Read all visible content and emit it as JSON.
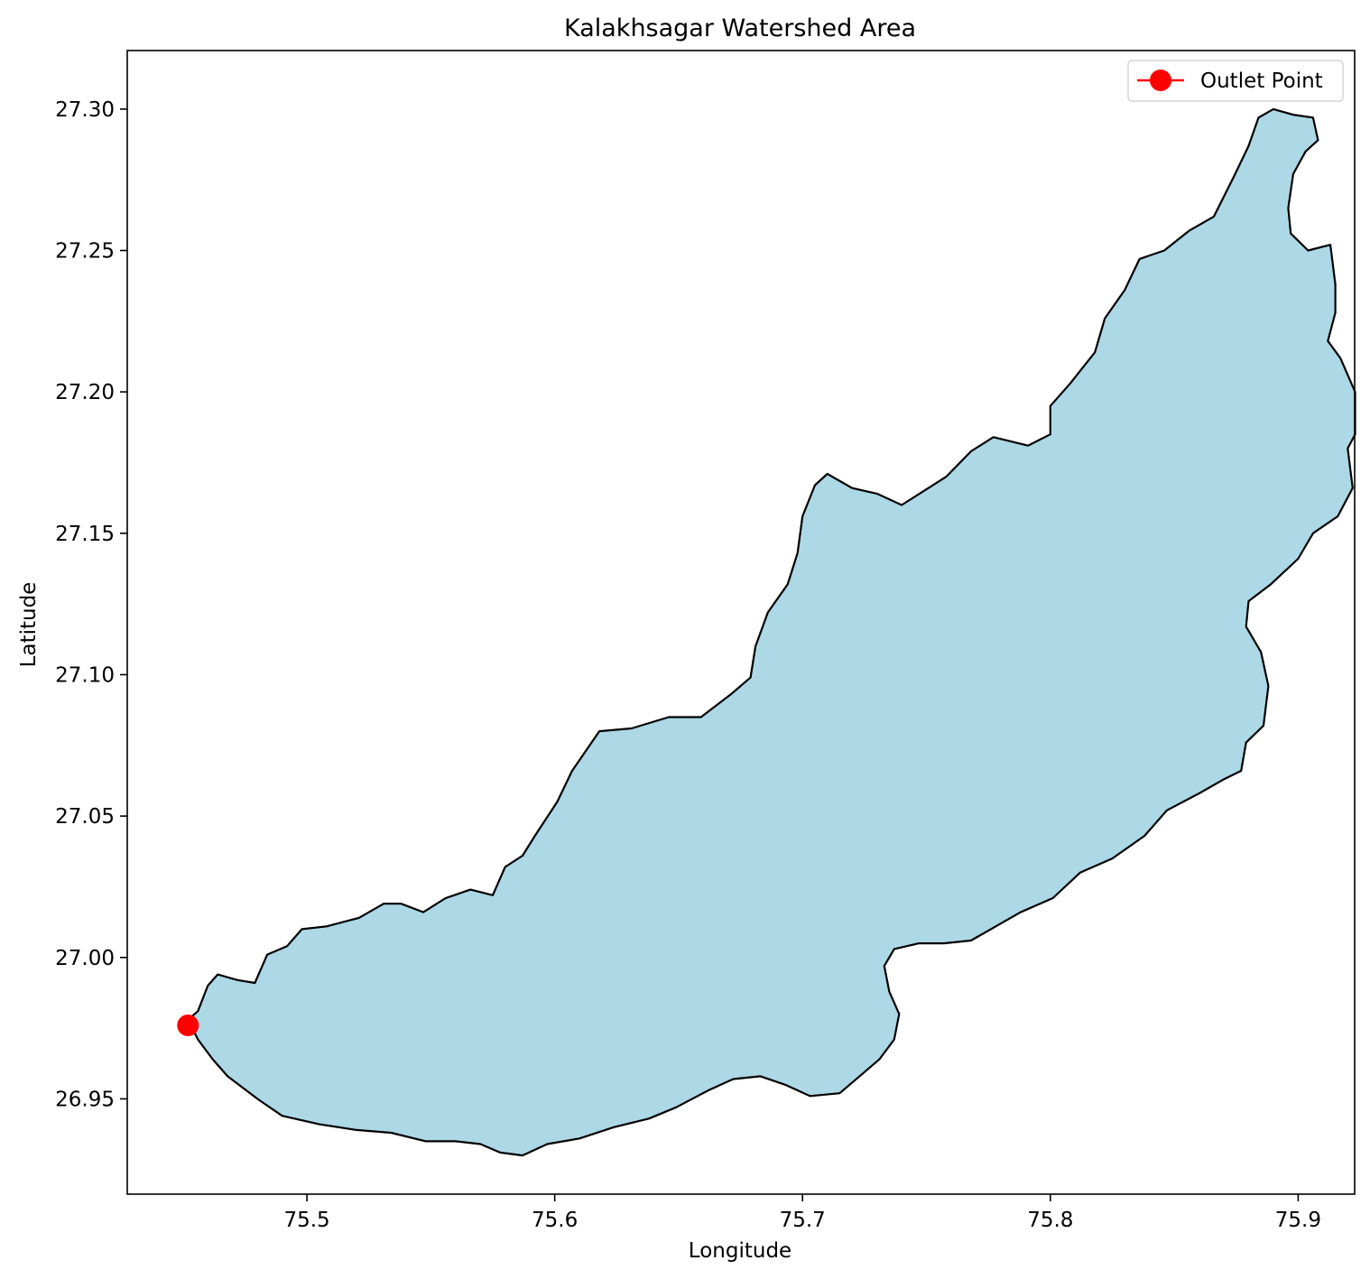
{
  "chart_data": {
    "type": "map",
    "title": "Kalakhsagar Watershed Area",
    "xlabel": "Longitude",
    "ylabel": "Latitude",
    "xlim": [
      75.4275,
      75.9228
    ],
    "ylim": [
      26.9163,
      27.3207
    ],
    "xticks": [
      75.5,
      75.6,
      75.7,
      75.8,
      75.9
    ],
    "xtick_labels": [
      "75.5",
      "75.6",
      "75.7",
      "75.8",
      "75.9"
    ],
    "yticks": [
      26.95,
      27.0,
      27.05,
      27.1,
      27.15,
      27.2,
      27.25,
      27.3
    ],
    "ytick_labels": [
      "26.95",
      "27.00",
      "27.05",
      "27.10",
      "27.15",
      "27.20",
      "27.25",
      "27.30"
    ],
    "grid": false,
    "legend": {
      "placement": "top-right",
      "entries": [
        "Outlet Point"
      ]
    },
    "colors": {
      "watershed_fill": "#add8e6",
      "watershed_edge": "#000000",
      "outlet": "#ff0000"
    },
    "watershed_boundary": [
      [
        75.452,
        26.978
      ],
      [
        75.456,
        26.981
      ],
      [
        75.46,
        26.99
      ],
      [
        75.464,
        26.994
      ],
      [
        75.472,
        26.992
      ],
      [
        75.479,
        26.991
      ],
      [
        75.484,
        27.001
      ],
      [
        75.492,
        27.004
      ],
      [
        75.498,
        27.01
      ],
      [
        75.508,
        27.011
      ],
      [
        75.521,
        27.014
      ],
      [
        75.531,
        27.019
      ],
      [
        75.538,
        27.019
      ],
      [
        75.547,
        27.016
      ],
      [
        75.556,
        27.021
      ],
      [
        75.566,
        27.024
      ],
      [
        75.575,
        27.022
      ],
      [
        75.58,
        27.032
      ],
      [
        75.587,
        27.036
      ],
      [
        75.592,
        27.043
      ],
      [
        75.601,
        27.055
      ],
      [
        75.607,
        27.066
      ],
      [
        75.618,
        27.08
      ],
      [
        75.631,
        27.081
      ],
      [
        75.646,
        27.085
      ],
      [
        75.659,
        27.085
      ],
      [
        75.671,
        27.093
      ],
      [
        75.679,
        27.099
      ],
      [
        75.681,
        27.11
      ],
      [
        75.686,
        27.122
      ],
      [
        75.694,
        27.132
      ],
      [
        75.698,
        27.143
      ],
      [
        75.7,
        27.156
      ],
      [
        75.705,
        27.167
      ],
      [
        75.71,
        27.171
      ],
      [
        75.72,
        27.166
      ],
      [
        75.73,
        27.164
      ],
      [
        75.74,
        27.16
      ],
      [
        75.749,
        27.165
      ],
      [
        75.758,
        27.17
      ],
      [
        75.768,
        27.179
      ],
      [
        75.777,
        27.184
      ],
      [
        75.791,
        27.181
      ],
      [
        75.8,
        27.185
      ],
      [
        75.8,
        27.195
      ],
      [
        75.808,
        27.203
      ],
      [
        75.818,
        27.214
      ],
      [
        75.822,
        27.226
      ],
      [
        75.83,
        27.236
      ],
      [
        75.836,
        27.247
      ],
      [
        75.846,
        27.25
      ],
      [
        75.856,
        27.257
      ],
      [
        75.866,
        27.262
      ],
      [
        75.874,
        27.276
      ],
      [
        75.88,
        27.287
      ],
      [
        75.884,
        27.297
      ],
      [
        75.89,
        27.3
      ],
      [
        75.898,
        27.298
      ],
      [
        75.906,
        27.297
      ],
      [
        75.908,
        27.289
      ],
      [
        75.903,
        27.285
      ],
      [
        75.898,
        27.277
      ],
      [
        75.896,
        27.265
      ],
      [
        75.897,
        27.256
      ],
      [
        75.904,
        27.25
      ],
      [
        75.913,
        27.252
      ],
      [
        75.915,
        27.238
      ],
      [
        75.915,
        27.228
      ],
      [
        75.912,
        27.218
      ],
      [
        75.917,
        27.212
      ],
      [
        75.923,
        27.2
      ],
      [
        75.923,
        27.185
      ],
      [
        75.92,
        27.18
      ],
      [
        75.922,
        27.166
      ],
      [
        75.916,
        27.156
      ],
      [
        75.906,
        27.15
      ],
      [
        75.9,
        27.141
      ],
      [
        75.889,
        27.132
      ],
      [
        75.88,
        27.126
      ],
      [
        75.879,
        27.117
      ],
      [
        75.885,
        27.108
      ],
      [
        75.888,
        27.096
      ],
      [
        75.886,
        27.082
      ],
      [
        75.879,
        27.076
      ],
      [
        75.877,
        27.066
      ],
      [
        75.87,
        27.063
      ],
      [
        75.86,
        27.058
      ],
      [
        75.847,
        27.052
      ],
      [
        75.838,
        27.043
      ],
      [
        75.825,
        27.035
      ],
      [
        75.812,
        27.03
      ],
      [
        75.801,
        27.021
      ],
      [
        75.788,
        27.016
      ],
      [
        75.778,
        27.011
      ],
      [
        75.768,
        27.006
      ],
      [
        75.757,
        27.005
      ],
      [
        75.747,
        27.005
      ],
      [
        75.737,
        27.003
      ],
      [
        75.733,
        26.997
      ],
      [
        75.735,
        26.988
      ],
      [
        75.739,
        26.98
      ],
      [
        75.737,
        26.971
      ],
      [
        75.731,
        26.964
      ],
      [
        75.723,
        26.958
      ],
      [
        75.715,
        26.952
      ],
      [
        75.703,
        26.951
      ],
      [
        75.693,
        26.955
      ],
      [
        75.683,
        26.958
      ],
      [
        75.672,
        26.957
      ],
      [
        75.662,
        26.953
      ],
      [
        75.649,
        26.947
      ],
      [
        75.638,
        26.943
      ],
      [
        75.624,
        26.94
      ],
      [
        75.61,
        26.936
      ],
      [
        75.597,
        26.934
      ],
      [
        75.587,
        26.93
      ],
      [
        75.578,
        26.931
      ],
      [
        75.57,
        26.934
      ],
      [
        75.56,
        26.935
      ],
      [
        75.548,
        26.935
      ],
      [
        75.534,
        26.938
      ],
      [
        75.52,
        26.939
      ],
      [
        75.505,
        26.941
      ],
      [
        75.49,
        26.944
      ],
      [
        75.48,
        26.95
      ],
      [
        75.474,
        26.954
      ],
      [
        75.468,
        26.958
      ],
      [
        75.462,
        26.964
      ],
      [
        75.456,
        26.971
      ]
    ],
    "outlet_point": {
      "name": "Outlet Point",
      "lon": 75.452,
      "lat": 26.976
    }
  }
}
